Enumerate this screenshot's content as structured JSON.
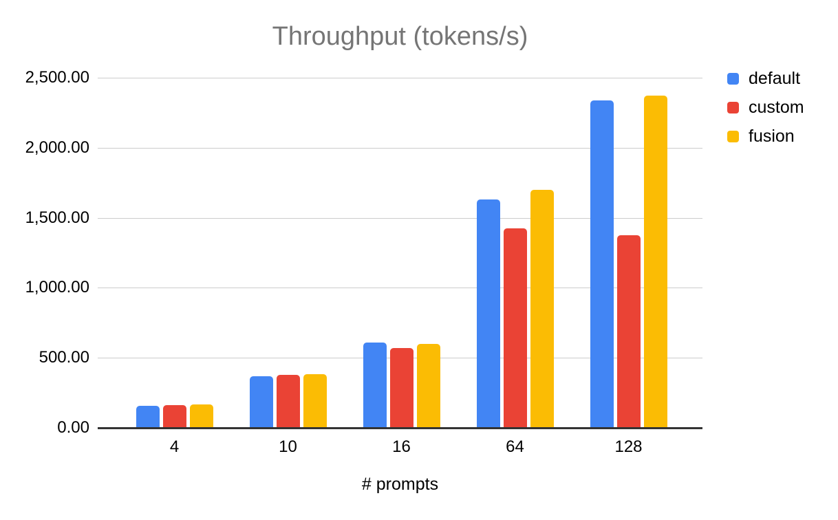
{
  "chart_data": {
    "type": "bar",
    "title": "Throughput (tokens/s)",
    "xlabel": "# prompts",
    "ylabel": "",
    "categories": [
      "4",
      "10",
      "16",
      "64",
      "128"
    ],
    "series": [
      {
        "name": "default",
        "color": "#4285F4",
        "values": [
          155,
          368,
          610,
          1630,
          2340
        ]
      },
      {
        "name": "custom",
        "color": "#EA4335",
        "values": [
          161,
          376,
          568,
          1425,
          1375
        ]
      },
      {
        "name": "fusion",
        "color": "#FBBC04",
        "values": [
          168,
          384,
          598,
          1700,
          2370
        ]
      }
    ],
    "ylim": [
      0,
      2500
    ],
    "y_tick_step": 500,
    "y_tick_labels": [
      "2,500.00",
      "2,000.00",
      "1,500.00",
      "1,000.00",
      "500.00",
      "0.00"
    ],
    "grid": "horizontal",
    "legend_position": "top-right",
    "colors": {
      "title_text": "#757575",
      "axis_label_text": "#000000",
      "gridline": "#cccccc",
      "axis_line": "#333333",
      "background": "#ffffff"
    }
  }
}
